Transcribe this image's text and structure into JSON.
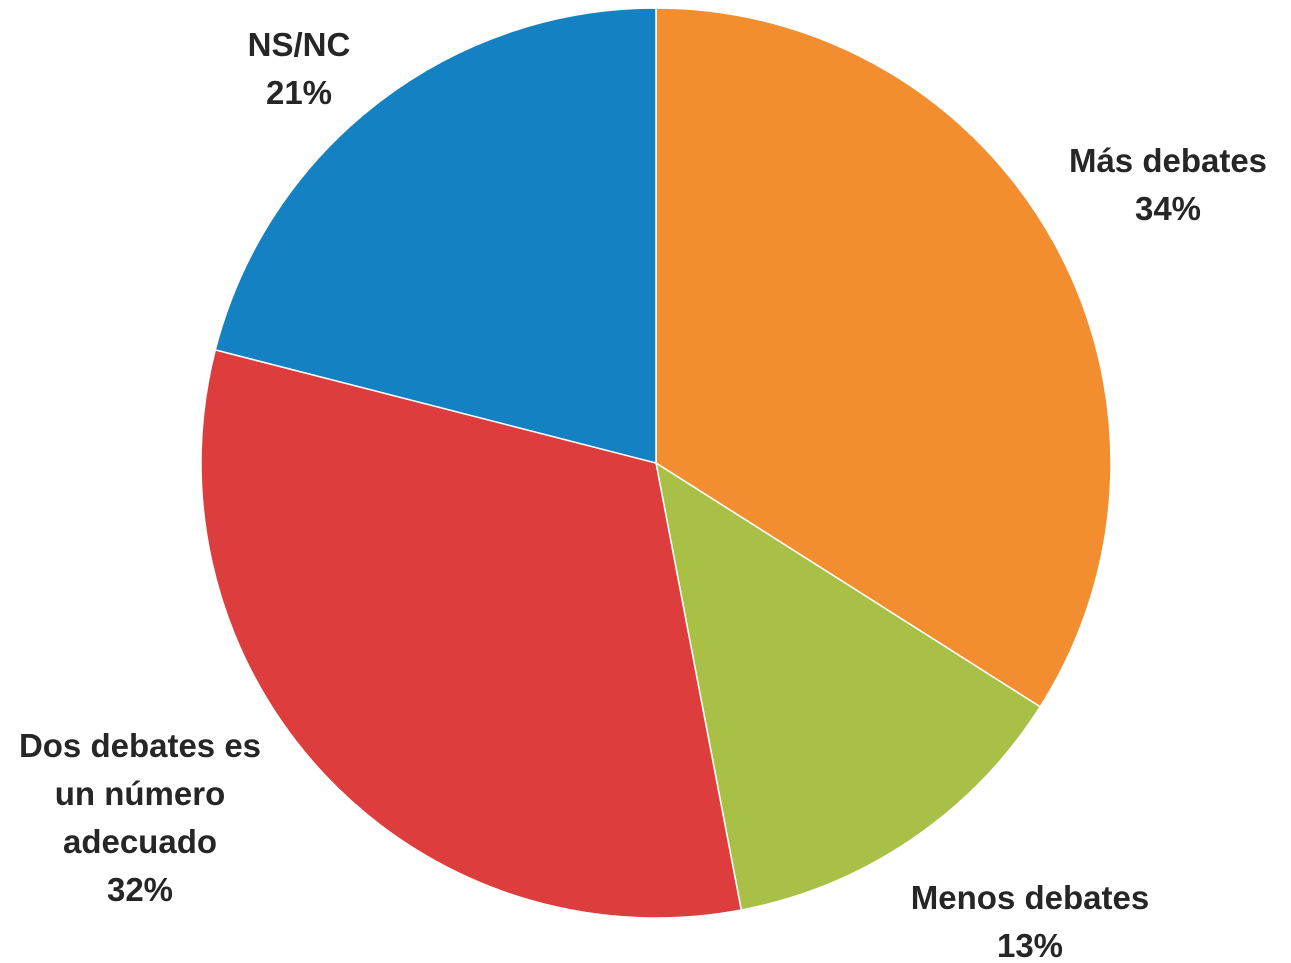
{
  "chart_data": {
    "type": "pie",
    "start_angle_deg": 0,
    "direction": "clockwise",
    "slices": [
      {
        "label_lines": [
          "Más debates"
        ],
        "pct_text": "34%",
        "value": 34,
        "color": "#F28E30"
      },
      {
        "label_lines": [
          "Menos debates"
        ],
        "pct_text": "13%",
        "value": 13,
        "color": "#A9C047"
      },
      {
        "label_lines": [
          "Dos debates es",
          "un número",
          "adecuado"
        ],
        "pct_text": "32%",
        "value": 32,
        "color": "#DD3E3D"
      },
      {
        "label_lines": [
          "NS/NC"
        ],
        "pct_text": "21%",
        "value": 21,
        "color": "#1482C2"
      }
    ]
  }
}
